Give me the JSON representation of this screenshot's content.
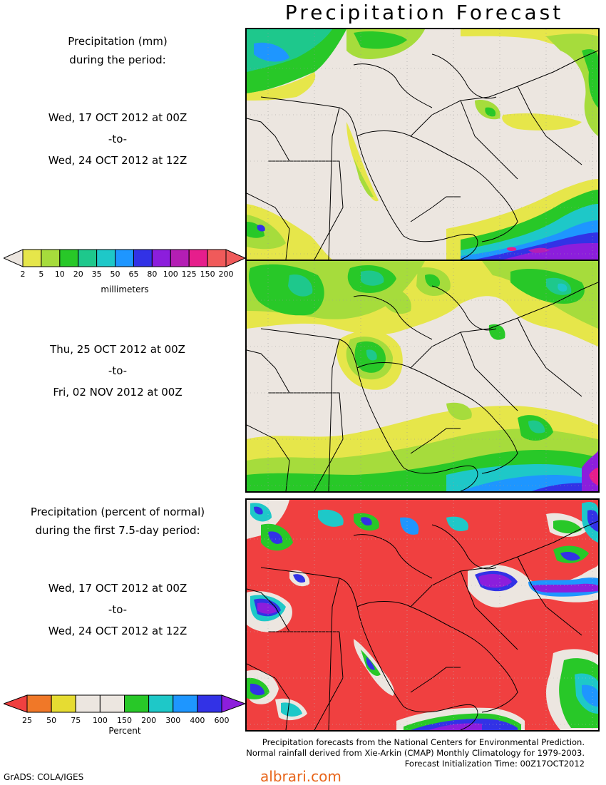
{
  "title": "Precipitation Forecast",
  "period1": {
    "heading_line1": "Precipitation (mm)",
    "heading_line2": "during the period:",
    "start": "Wed, 17 OCT 2012 at 00Z",
    "to": "-to-",
    "end": "Wed, 24 OCT 2012 at 12Z"
  },
  "period2": {
    "start": "Thu, 25 OCT 2012 at 00Z",
    "to": "-to-",
    "end": "Fri, 02 NOV 2012 at 00Z"
  },
  "period3": {
    "heading_line1": "Precipitation (percent of normal)",
    "heading_line2": "during the first 7.5-day period:",
    "start": "Wed, 17 OCT 2012 at 00Z",
    "to": "-to-",
    "end": "Wed, 24 OCT 2012 at 12Z"
  },
  "mm_scale": {
    "unit": "millimeters",
    "labels": [
      "2",
      "5",
      "10",
      "20",
      "35",
      "50",
      "65",
      "80",
      "100",
      "125",
      "150",
      "200"
    ],
    "colors": [
      "#e6e64a",
      "#a6dc3c",
      "#28c828",
      "#1ec88c",
      "#1ec8c8",
      "#1e96ff",
      "#3232e6",
      "#8c1edc",
      "#b41eb4",
      "#e61e8c",
      "#f05a5a"
    ]
  },
  "pct_scale": {
    "unit": "Percent",
    "labels": [
      "25",
      "50",
      "75",
      "100",
      "150",
      "200",
      "300",
      "400",
      "600"
    ],
    "colors": [
      "#f07828",
      "#e6dc32",
      "#ece6e0",
      "#ece6e0",
      "#28c828",
      "#1ec8c8",
      "#1e96ff",
      "#3232e6"
    ]
  },
  "credits": {
    "line1": "Precipitation forecasts from the National Centers for Environmental Prediction.",
    "line2": "Normal rainfall derived from Xie-Arkin (CMAP) Monthly Climatology for 1979-2003.",
    "line3": "Forecast Initialization Time: 00Z17OCT2012"
  },
  "grads_label": "GrADS: COLA/IGES",
  "watermark": "albrari.com",
  "colors": {
    "land": "#ece6e0",
    "below_normal": "#f04040",
    "border_line": "#000000"
  }
}
